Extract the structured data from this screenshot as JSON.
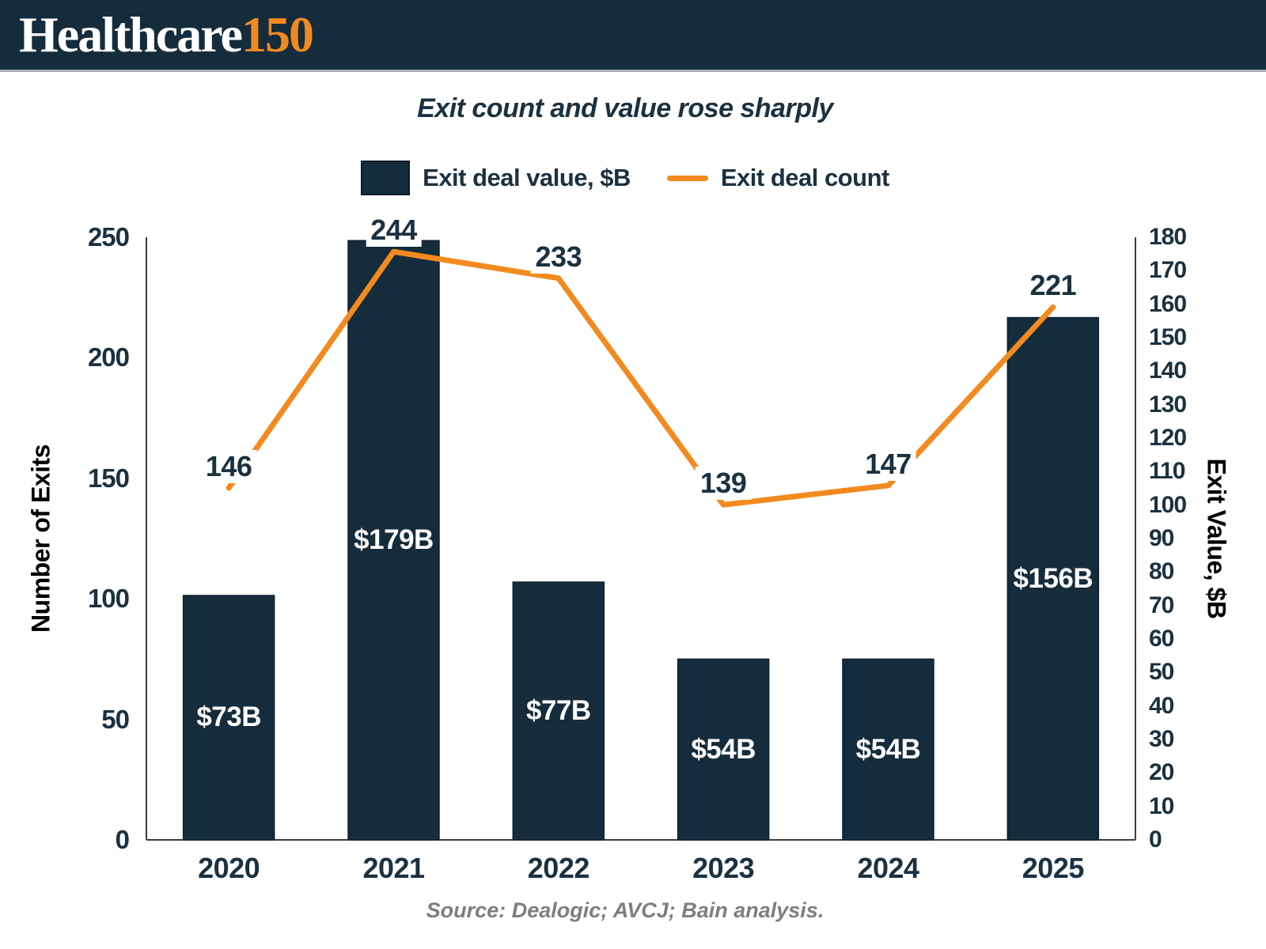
{
  "header": {
    "logo_text": "Healthcare",
    "logo_number": "150"
  },
  "title": "Exit count and value rose sharply",
  "legend": [
    {
      "label": "Exit deal value, $B",
      "swatch": "navy-square"
    },
    {
      "label": "Exit deal count",
      "swatch": "orange-line"
    }
  ],
  "source": "Source: Dealogic; AVCJ; Bain analysis.",
  "colors": {
    "navy": "#152c3c",
    "text_navy": "#1b3140",
    "orange": "#f28a1f",
    "axis_line": "#3c3c3c",
    "source_gray": "#7e7e7e",
    "bar_stroke": "#0e2230"
  },
  "chart_data": {
    "type": "bar",
    "subtype": "combo-bar-line",
    "title": "Exit count and value rose sharply",
    "categories": [
      "2020",
      "2021",
      "2022",
      "2023",
      "2024",
      "2025"
    ],
    "series": [
      {
        "name": "Exit deal value, $B",
        "type": "bar",
        "axis": "right",
        "values": [
          73,
          179,
          77,
          54,
          54,
          156
        ],
        "labels": [
          "$73B",
          "$179B",
          "$77B",
          "$54B",
          "$54B",
          "$156B"
        ]
      },
      {
        "name": "Exit deal count",
        "type": "line",
        "axis": "left",
        "values": [
          146,
          244,
          233,
          139,
          147,
          221
        ],
        "labels": [
          "146",
          "244",
          "233",
          "139",
          "147",
          "221"
        ]
      }
    ],
    "left_axis": {
      "title": "Number of Exits",
      "min": 0,
      "max": 250,
      "step": 50
    },
    "right_axis": {
      "title": "Exit Value, $B",
      "min": 0,
      "max": 180,
      "step": 10
    },
    "grid": false,
    "legend_position": "top"
  }
}
